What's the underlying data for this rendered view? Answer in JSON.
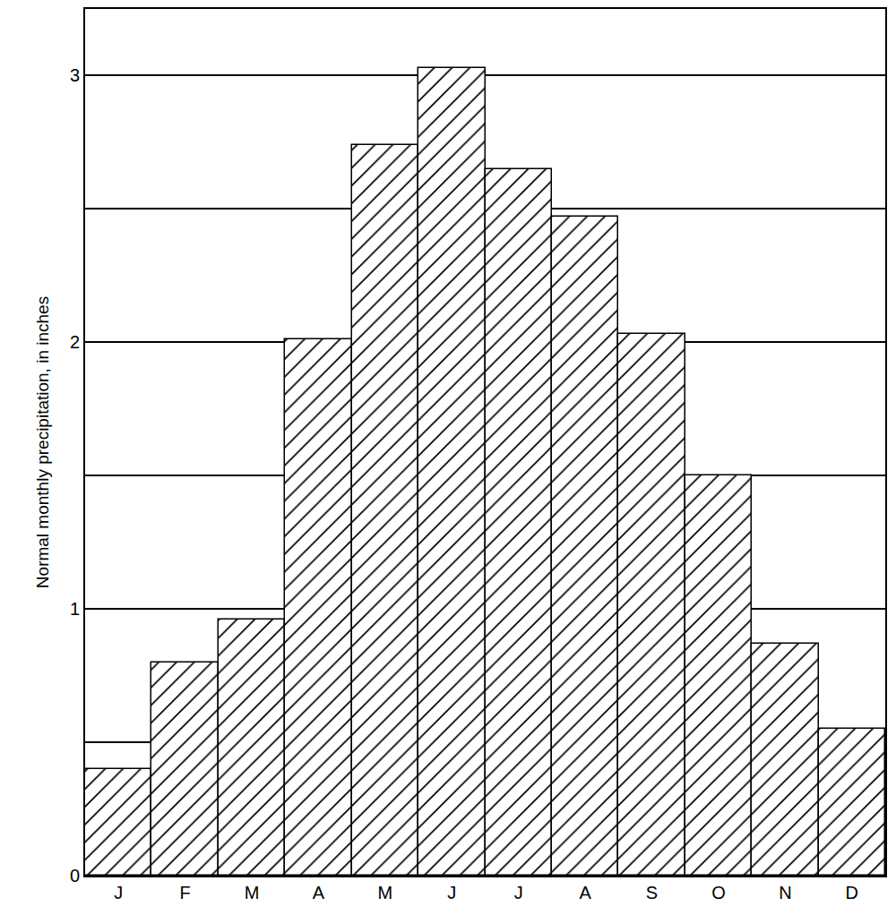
{
  "chart_data": {
    "type": "bar",
    "categories": [
      "J",
      "F",
      "M",
      "A",
      "M",
      "J",
      "J",
      "A",
      "S",
      "O",
      "N",
      "D"
    ],
    "values": [
      0.4,
      0.8,
      0.96,
      2.01,
      2.74,
      3.03,
      2.65,
      2.47,
      2.03,
      1.5,
      0.87,
      0.55
    ],
    "color": "#000000",
    "y_label": "Normal monthly precipitation, in inches",
    "ylim": [
      0,
      3.25
    ],
    "yticks": [
      0,
      1,
      2,
      3
    ],
    "grid": true
  }
}
